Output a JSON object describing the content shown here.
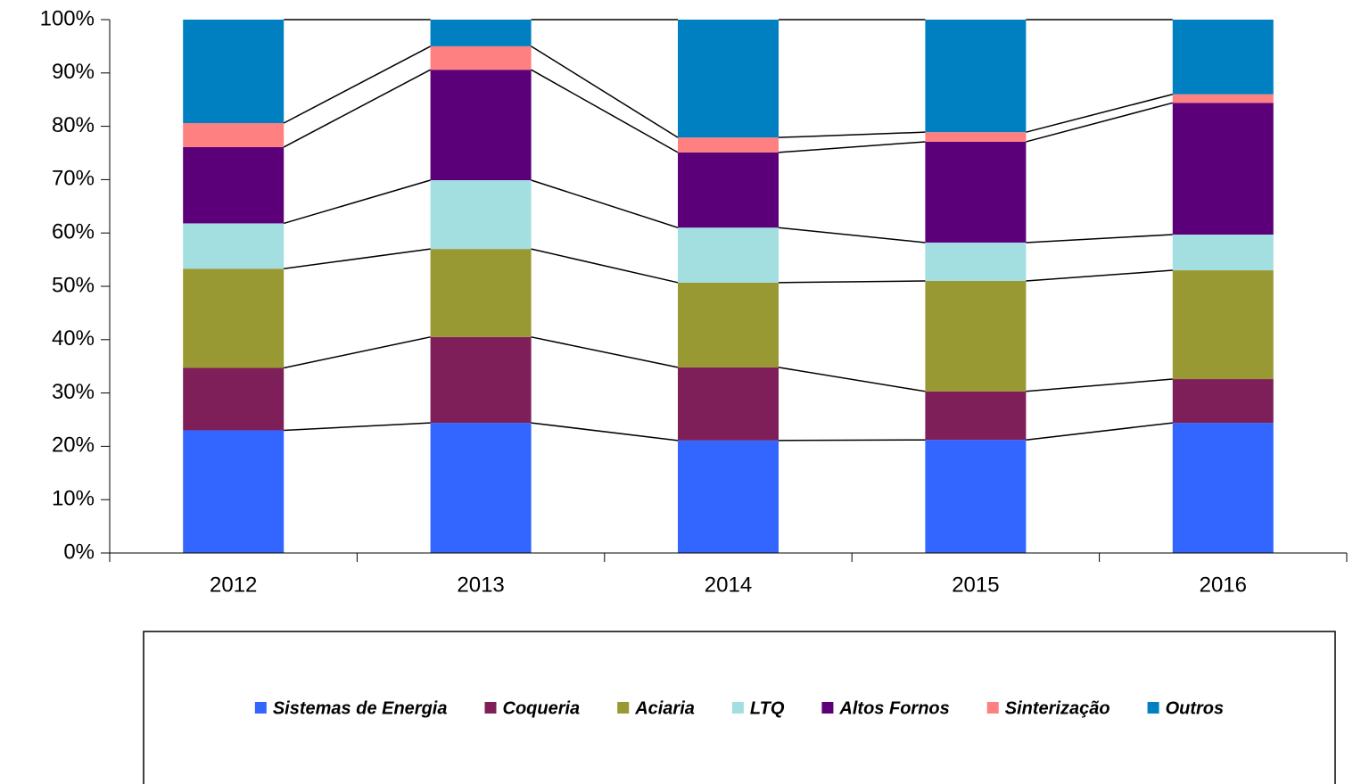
{
  "chart_data": {
    "type": "stacked_bar",
    "categories": [
      "2012",
      "2013",
      "2014",
      "2015",
      "2016"
    ],
    "series": [
      {
        "name": "Sistemas de Energia",
        "color": "#3366ff",
        "values": [
          23,
          24.4,
          21.1,
          21.2,
          24.4
        ]
      },
      {
        "name": "Coqueria",
        "color": "#7f1f5a",
        "values": [
          11.7,
          16.1,
          13.7,
          9.1,
          8.2
        ]
      },
      {
        "name": "Aciaria",
        "color": "#999933",
        "values": [
          18.6,
          16.5,
          15.9,
          20.7,
          20.4
        ]
      },
      {
        "name": "LTQ",
        "color": "#a3dfe0",
        "values": [
          8.5,
          12.9,
          10.3,
          7.2,
          6.7
        ]
      },
      {
        "name": "Altos Fornos",
        "color": "#5c007a",
        "values": [
          14.3,
          20.7,
          14.1,
          18.9,
          24.7
        ]
      },
      {
        "name": "Sinterização",
        "color": "#ff8080",
        "values": [
          4.5,
          4.4,
          2.8,
          1.8,
          1.6
        ]
      },
      {
        "name": "Outros",
        "color": "#0080c0",
        "values": [
          19.4,
          5.0,
          22.1,
          21.1,
          14.0
        ]
      }
    ],
    "ylim": [
      0,
      100
    ],
    "yticks": [
      {
        "value": 0,
        "label": "0%"
      },
      {
        "value": 10,
        "label": "10%"
      },
      {
        "value": 20,
        "label": "20%"
      },
      {
        "value": 30,
        "label": "30%"
      },
      {
        "value": 40,
        "label": "40%"
      },
      {
        "value": 50,
        "label": "50%"
      },
      {
        "value": 60,
        "label": "60%"
      },
      {
        "value": 70,
        "label": "70%"
      },
      {
        "value": 80,
        "label": "80%"
      },
      {
        "value": 90,
        "label": "90%"
      },
      {
        "value": 100,
        "label": "100%"
      }
    ],
    "legend": "bottom"
  }
}
